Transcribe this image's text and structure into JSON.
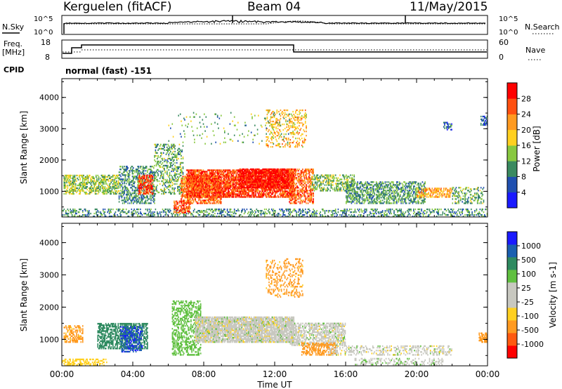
{
  "header": {
    "station": "Kerguelen (fitACF)",
    "beam": "Beam 04",
    "date": "11/May/2015"
  },
  "status_panels": {
    "nsky_label": "N.Sky",
    "nsky_ticks": [
      "10^5",
      "10^0"
    ],
    "nsearch_label": "N.Search",
    "nsearch_ticks": [
      "10^5",
      "10^0"
    ],
    "freq_label": "Freq.",
    "freq_unit": "[MHz]",
    "freq_ticks": [
      "18",
      "8"
    ],
    "nave_label": "Nave",
    "nave_ticks": [
      "60",
      "0"
    ],
    "cpid_label": "CPID",
    "cpid_value": "normal (fast) -151"
  },
  "chart_data": [
    {
      "type": "heatmap",
      "name": "power",
      "ylabel": "Slant Range [km]",
      "xlabel": "Time UT",
      "x_ticks": [
        "00:00",
        "04:00",
        "08:00",
        "12:00",
        "16:00",
        "20:00",
        "00:00"
      ],
      "x_range_hours": [
        0,
        24
      ],
      "y_ticks": [
        "1000",
        "2000",
        "3000",
        "4000"
      ],
      "ylim": [
        180,
        4600
      ],
      "colorbar_label": "Power [dB]",
      "colorbar_ticks": [
        "28",
        "24",
        "20",
        "16",
        "12",
        "8",
        "4"
      ],
      "colorbar_range": [
        0,
        32
      ],
      "colors": [
        "#1a1aff",
        "#2050b0",
        "#3a8a60",
        "#88c840",
        "#ffd020",
        "#ff9a20",
        "#ff5010",
        "#ff0000"
      ],
      "scatter_regions": [
        {
          "t": [
            0.0,
            24.0
          ],
          "r": [
            180,
            420
          ],
          "value": 10,
          "density": 0.35
        },
        {
          "t": [
            0.1,
            3.2
          ],
          "r": [
            900,
            1500
          ],
          "value": 14,
          "density": 0.55
        },
        {
          "t": [
            3.2,
            5.2
          ],
          "r": [
            600,
            1800
          ],
          "value": 10,
          "density": 0.45
        },
        {
          "t": [
            4.3,
            5.1
          ],
          "r": [
            900,
            1500
          ],
          "value": 27,
          "density": 0.6
        },
        {
          "t": [
            5.2,
            6.8
          ],
          "r": [
            900,
            2500
          ],
          "value": 12,
          "density": 0.35
        },
        {
          "t": [
            6.7,
            9.0
          ],
          "r": [
            600,
            1500
          ],
          "value": 24,
          "density": 0.65
        },
        {
          "t": [
            6.3,
            7.2
          ],
          "r": [
            300,
            700
          ],
          "value": 26,
          "density": 0.55
        },
        {
          "t": [
            7.0,
            13.1
          ],
          "r": [
            800,
            1700
          ],
          "value": 27,
          "density": 0.75
        },
        {
          "t": [
            10.0,
            13.0
          ],
          "r": [
            1100,
            1700
          ],
          "value": 30,
          "density": 0.8
        },
        {
          "t": [
            11.5,
            13.8
          ],
          "r": [
            2400,
            3600
          ],
          "value": 20,
          "density": 0.25
        },
        {
          "t": [
            12.8,
            14.2
          ],
          "r": [
            600,
            1700
          ],
          "value": 25,
          "density": 0.55
        },
        {
          "t": [
            14.0,
            16.5
          ],
          "r": [
            1000,
            1500
          ],
          "value": 13,
          "density": 0.45
        },
        {
          "t": [
            16.0,
            20.5
          ],
          "r": [
            600,
            1300
          ],
          "value": 11,
          "density": 0.5
        },
        {
          "t": [
            20.0,
            22.0
          ],
          "r": [
            800,
            1100
          ],
          "value": 21,
          "density": 0.55
        },
        {
          "t": [
            22.0,
            23.8
          ],
          "r": [
            600,
            1100
          ],
          "value": 12,
          "density": 0.35
        },
        {
          "t": [
            6.0,
            13.0
          ],
          "r": [
            2500,
            3500
          ],
          "value": 12,
          "density": 0.05
        },
        {
          "t": [
            23.6,
            24.0
          ],
          "r": [
            3100,
            3400
          ],
          "value": 6,
          "density": 0.6
        },
        {
          "t": [
            21.5,
            22.0
          ],
          "r": [
            2950,
            3200
          ],
          "value": 8,
          "density": 0.5
        }
      ]
    },
    {
      "type": "heatmap",
      "name": "velocity",
      "ylabel": "Slant Range [km]",
      "xlabel": "Time UT",
      "x_ticks": [
        "00:00",
        "04:00",
        "08:00",
        "12:00",
        "16:00",
        "20:00",
        "00:00"
      ],
      "x_range_hours": [
        0,
        24
      ],
      "y_ticks": [
        "1000",
        "2000",
        "3000",
        "4000"
      ],
      "ylim": [
        180,
        4600
      ],
      "colorbar_label": "Velocity [m s-1]",
      "colorbar_ticks": [
        "1000",
        "500",
        "100",
        "25",
        "-25",
        "-100",
        "-500",
        "-1000"
      ],
      "colors": [
        "#ff0000",
        "#ff5a10",
        "#ff9a20",
        "#ffd020",
        "#c8c8c0",
        "#c8c8c0",
        "#60c040",
        "#2e8a60",
        "#1a5fb0",
        "#1a1aff"
      ],
      "scatter_regions": [
        {
          "t": [
            0.0,
            2.5
          ],
          "r": [
            180,
            400
          ],
          "value": -60,
          "density": 0.45
        },
        {
          "t": [
            0.1,
            1.2
          ],
          "r": [
            900,
            1400
          ],
          "value": -150,
          "density": 0.5
        },
        {
          "t": [
            2.0,
            4.8
          ],
          "r": [
            700,
            1500
          ],
          "value": 250,
          "density": 0.6
        },
        {
          "t": [
            3.3,
            4.5
          ],
          "r": [
            600,
            1400
          ],
          "value": 900,
          "density": 0.45
        },
        {
          "t": [
            6.2,
            7.8
          ],
          "r": [
            500,
            2200
          ],
          "value": 60,
          "density": 0.45
        },
        {
          "t": [
            7.5,
            13.1
          ],
          "r": [
            900,
            1700
          ],
          "value": 0,
          "density": 0.85
        },
        {
          "t": [
            12.8,
            16.0
          ],
          "r": [
            800,
            1500
          ],
          "value": 0,
          "density": 0.55
        },
        {
          "t": [
            13.5,
            15.5
          ],
          "r": [
            500,
            900
          ],
          "value": -300,
          "density": 0.55
        },
        {
          "t": [
            15.0,
            22.0
          ],
          "r": [
            500,
            800
          ],
          "value": 0,
          "density": 0.35
        },
        {
          "t": [
            16.5,
            21.5
          ],
          "r": [
            200,
            400
          ],
          "value": 10,
          "density": 0.3
        },
        {
          "t": [
            11.5,
            13.6
          ],
          "r": [
            2300,
            3500
          ],
          "value": -150,
          "density": 0.25
        },
        {
          "t": [
            23.5,
            24.0
          ],
          "r": [
            900,
            1200
          ],
          "value": -200,
          "density": 0.6
        }
      ]
    }
  ]
}
